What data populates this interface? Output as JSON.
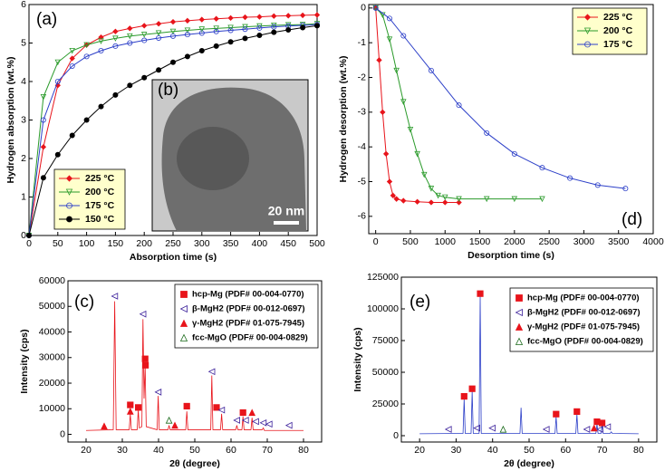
{
  "chart_data": [
    {
      "type": "line",
      "panel_label": "(a)",
      "xlabel": "Absorption time (s)",
      "ylabel": "Hydrogen absorption (wt.%)",
      "xlim": [
        0,
        500
      ],
      "ylim": [
        0,
        6
      ],
      "xticks": [
        0,
        50,
        100,
        150,
        200,
        250,
        300,
        350,
        400,
        450,
        500
      ],
      "yticks": [
        0,
        1,
        2,
        3,
        4,
        5,
        6
      ],
      "legend_position": "lower left",
      "inset": {
        "label": "(b)",
        "scale_bar": "20 nm"
      },
      "x": [
        0,
        25,
        50,
        75,
        100,
        125,
        150,
        175,
        200,
        225,
        250,
        275,
        300,
        325,
        350,
        375,
        400,
        425,
        450,
        475,
        500
      ],
      "series": [
        {
          "name": "225 °C",
          "color": "#e8141b",
          "marker": "diamond",
          "filled": true,
          "values": [
            0,
            2.3,
            3.9,
            4.6,
            4.95,
            5.15,
            5.3,
            5.38,
            5.45,
            5.5,
            5.55,
            5.58,
            5.61,
            5.63,
            5.65,
            5.67,
            5.68,
            5.7,
            5.71,
            5.72,
            5.73
          ]
        },
        {
          "name": "200 °C",
          "color": "#2a9a2a",
          "marker": "triangle-down",
          "filled": false,
          "values": [
            0,
            3.6,
            4.5,
            4.8,
            4.95,
            5.05,
            5.12,
            5.18,
            5.22,
            5.26,
            5.3,
            5.33,
            5.36,
            5.38,
            5.4,
            5.42,
            5.44,
            5.46,
            5.47,
            5.48,
            5.5
          ]
        },
        {
          "name": "175 °C",
          "color": "#2c3fc8",
          "marker": "circle",
          "filled": false,
          "values": [
            0,
            3.0,
            4.0,
            4.4,
            4.65,
            4.8,
            4.92,
            5.0,
            5.07,
            5.13,
            5.18,
            5.22,
            5.26,
            5.3,
            5.33,
            5.36,
            5.39,
            5.42,
            5.44,
            5.46,
            5.48
          ]
        },
        {
          "name": "150 °C",
          "color": "#000000",
          "marker": "circle",
          "filled": true,
          "values": [
            0,
            1.5,
            2.1,
            2.6,
            3.0,
            3.35,
            3.65,
            3.9,
            4.1,
            4.3,
            4.5,
            4.65,
            4.8,
            4.92,
            5.03,
            5.12,
            5.2,
            5.28,
            5.34,
            5.4,
            5.45
          ]
        }
      ]
    },
    {
      "type": "line",
      "panel_label": "(d)",
      "xlabel": "Desorption time (s)",
      "ylabel": "Hydrogen desorption (wt.%)",
      "xlim": [
        -100,
        4000
      ],
      "ylim": [
        -6.5,
        0.1
      ],
      "xticks": [
        0,
        500,
        1000,
        1500,
        2000,
        2500,
        3000,
        3500,
        4000
      ],
      "yticks": [
        -6,
        -5,
        -4,
        -3,
        -2,
        -1,
        0
      ],
      "legend_position": "upper right",
      "series": [
        {
          "name": "225 °C",
          "color": "#e8141b",
          "marker": "diamond",
          "filled": true,
          "x": [
            0,
            50,
            100,
            150,
            200,
            250,
            300,
            400,
            600,
            800,
            1000,
            1200
          ],
          "values": [
            0,
            -1.5,
            -3.0,
            -4.2,
            -5.0,
            -5.4,
            -5.5,
            -5.55,
            -5.58,
            -5.6,
            -5.6,
            -5.6
          ]
        },
        {
          "name": "200 °C",
          "color": "#2a9a2a",
          "marker": "triangle-down",
          "filled": false,
          "x": [
            0,
            100,
            200,
            300,
            400,
            500,
            600,
            700,
            800,
            900,
            1000,
            1200,
            1600,
            2000,
            2400
          ],
          "values": [
            0,
            -0.2,
            -0.9,
            -1.8,
            -2.7,
            -3.5,
            -4.2,
            -4.8,
            -5.2,
            -5.4,
            -5.45,
            -5.5,
            -5.5,
            -5.5,
            -5.5
          ]
        },
        {
          "name": "175 °C",
          "color": "#2c3fc8",
          "marker": "circle",
          "filled": false,
          "x": [
            0,
            200,
            400,
            800,
            1200,
            1600,
            2000,
            2400,
            2800,
            3200,
            3600
          ],
          "values": [
            0,
            -0.3,
            -0.8,
            -1.8,
            -2.8,
            -3.6,
            -4.2,
            -4.6,
            -4.9,
            -5.1,
            -5.2
          ]
        }
      ]
    },
    {
      "type": "line",
      "panel_label": "(c)",
      "xlabel": "2θ (degree)",
      "ylabel": "Intensity (cps)",
      "xlim": [
        15,
        85
      ],
      "ylim": [
        -3000,
        60000
      ],
      "xticks": [
        20,
        30,
        40,
        50,
        60,
        70,
        80
      ],
      "yticks": [
        0,
        10000,
        20000,
        30000,
        40000,
        50000,
        60000
      ],
      "legend_position": "upper right",
      "color": "#e8141b",
      "x": [
        20,
        27.5,
        27.9,
        28.3,
        31.9,
        32.2,
        32.5,
        34.1,
        34.4,
        34.7,
        35.4,
        35.7,
        36.0,
        36.3,
        36.6,
        39.6,
        39.9,
        40.2,
        42.6,
        42.9,
        43.2,
        47.5,
        47.8,
        48.1,
        54.4,
        54.7,
        55.0,
        57.1,
        57.4,
        57.7,
        61.3,
        61.6,
        61.9,
        63.0,
        63.3,
        63.6,
        65.5,
        65.8,
        66.1,
        68.6,
        68.9,
        69.2,
        80
      ],
      "values": [
        1500,
        1800,
        52000,
        1800,
        1800,
        8000,
        1800,
        1800,
        9500,
        2500,
        3000,
        45000,
        14000,
        27000,
        3000,
        1800,
        15000,
        1800,
        1800,
        3500,
        1800,
        1800,
        9000,
        1800,
        1800,
        23000,
        1800,
        1800,
        8000,
        1800,
        1800,
        3500,
        1800,
        1800,
        7000,
        1800,
        1800,
        6500,
        1800,
        1800,
        2500,
        1500,
        1500
      ],
      "phases": [
        {
          "name": "hcp-Mg (PDF# 00-004-0770)",
          "color": "#e8141b",
          "marker": "square",
          "filled": true
        },
        {
          "name": "β-MgH2 (PDF# 00-012-0697)",
          "color": "#3a1f9a",
          "marker": "triangle-left",
          "filled": false
        },
        {
          "name": "γ-MgH2 (PDF# 01-075-7945)",
          "color": "#e8141b",
          "marker": "triangle-up",
          "filled": true
        },
        {
          "name": "fcc-MgO (PDF# 00-004-0829)",
          "color": "#1a6a1a",
          "marker": "triangle-up",
          "filled": false
        }
      ],
      "markers": [
        {
          "x": 27.9,
          "y": 54000,
          "phase": 1
        },
        {
          "x": 35.7,
          "y": 47000,
          "phase": 1
        },
        {
          "x": 36.3,
          "y": 29500,
          "phase": 0
        },
        {
          "x": 36.4,
          "y": 27000,
          "phase": 0
        },
        {
          "x": 32.2,
          "y": 11500,
          "phase": 0
        },
        {
          "x": 32.2,
          "y": 9000,
          "phase": 2
        },
        {
          "x": 34.4,
          "y": 10500,
          "phase": 0
        },
        {
          "x": 39.9,
          "y": 16500,
          "phase": 1
        },
        {
          "x": 42.9,
          "y": 5500,
          "phase": 3
        },
        {
          "x": 25.0,
          "y": 3200,
          "phase": 2
        },
        {
          "x": 44.5,
          "y": 3500,
          "phase": 2
        },
        {
          "x": 47.8,
          "y": 11000,
          "phase": 0
        },
        {
          "x": 54.7,
          "y": 24500,
          "phase": 1
        },
        {
          "x": 56.0,
          "y": 10500,
          "phase": 0
        },
        {
          "x": 57.4,
          "y": 9500,
          "phase": 1
        },
        {
          "x": 61.6,
          "y": 5500,
          "phase": 1
        },
        {
          "x": 63.3,
          "y": 8500,
          "phase": 0
        },
        {
          "x": 64.0,
          "y": 5500,
          "phase": 1
        },
        {
          "x": 65.8,
          "y": 8500,
          "phase": 2
        },
        {
          "x": 66.8,
          "y": 5000,
          "phase": 1
        },
        {
          "x": 68.9,
          "y": 4500,
          "phase": 1
        },
        {
          "x": 70.5,
          "y": 4000,
          "phase": 1
        },
        {
          "x": 76.0,
          "y": 3500,
          "phase": 1
        }
      ]
    },
    {
      "type": "line",
      "panel_label": "(e)",
      "xlabel": "2θ (degree)",
      "ylabel": "Intensity (cps)",
      "xlim": [
        15,
        85
      ],
      "ylim": [
        -5000,
        125000
      ],
      "xticks": [
        20,
        30,
        40,
        50,
        60,
        70,
        80
      ],
      "yticks": [
        0,
        25000,
        50000,
        75000,
        100000,
        125000
      ],
      "legend_position": "upper right",
      "color": "#2c3fc8",
      "x": [
        20,
        31.9,
        32.2,
        32.5,
        34.1,
        34.4,
        34.7,
        36.3,
        36.6,
        36.9,
        47.5,
        47.8,
        48.1,
        57.1,
        57.4,
        57.7,
        62.8,
        63.1,
        63.4,
        68.3,
        68.6,
        68.9,
        69.7,
        70.0,
        70.3,
        72.2,
        72.5,
        72.8,
        80
      ],
      "values": [
        1500,
        1800,
        29000,
        1800,
        1800,
        35000,
        1800,
        1800,
        110000,
        1800,
        1800,
        22000,
        1800,
        1800,
        15000,
        1800,
        1800,
        17000,
        1800,
        1800,
        9000,
        1800,
        1800,
        8000,
        1800,
        1800,
        3000,
        1800,
        1500
      ],
      "phases": [
        {
          "name": "hcp-Mg (PDF# 00-004-0770)",
          "color": "#e8141b",
          "marker": "square",
          "filled": true
        },
        {
          "name": "β-MgH2 (PDF# 00-012-0697)",
          "color": "#3a1f9a",
          "marker": "triangle-left",
          "filled": false
        },
        {
          "name": "γ-MgH2 (PDF# 01-075-7945)",
          "color": "#e8141b",
          "marker": "triangle-up",
          "filled": true
        },
        {
          "name": "fcc-MgO (PDF# 00-004-0829)",
          "color": "#1a6a1a",
          "marker": "triangle-up",
          "filled": false
        }
      ],
      "markers": [
        {
          "x": 32.2,
          "y": 31000,
          "phase": 0
        },
        {
          "x": 34.4,
          "y": 37000,
          "phase": 0
        },
        {
          "x": 36.6,
          "y": 112000,
          "phase": 0
        },
        {
          "x": 57.4,
          "y": 17000,
          "phase": 0
        },
        {
          "x": 63.1,
          "y": 19000,
          "phase": 0
        },
        {
          "x": 68.6,
          "y": 11000,
          "phase": 0
        },
        {
          "x": 70.0,
          "y": 10000,
          "phase": 0
        },
        {
          "x": 67.8,
          "y": 6000,
          "phase": 2
        },
        {
          "x": 27.9,
          "y": 5000,
          "phase": 1
        },
        {
          "x": 35.7,
          "y": 6000,
          "phase": 1
        },
        {
          "x": 39.9,
          "y": 6000,
          "phase": 1
        },
        {
          "x": 54.7,
          "y": 5000,
          "phase": 1
        },
        {
          "x": 65.8,
          "y": 5000,
          "phase": 1
        },
        {
          "x": 69.4,
          "y": 5000,
          "phase": 1
        },
        {
          "x": 71.5,
          "y": 7000,
          "phase": 1
        },
        {
          "x": 42.9,
          "y": 5000,
          "phase": 3
        }
      ]
    }
  ]
}
